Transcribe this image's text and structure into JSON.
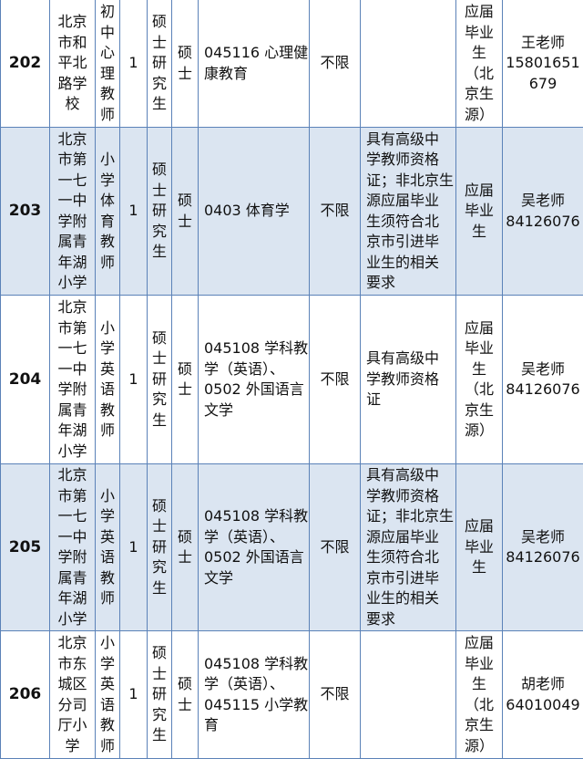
{
  "rows": [
    {
      "id": "202",
      "school": [
        "北京",
        "市和",
        "平北",
        "路学",
        "校"
      ],
      "position": [
        "初",
        "中",
        "心",
        "理",
        "教",
        "师"
      ],
      "count": "1",
      "education": [
        "硕",
        "士",
        "研",
        "究",
        "生"
      ],
      "degree": [
        "硕",
        "士"
      ],
      "major": [
        "045116 心理健",
        "康教育"
      ],
      "age": "不限",
      "requirements": [],
      "source": [
        "应届",
        "毕业",
        "生",
        "（北",
        "京生",
        "源）"
      ],
      "contact": [
        "王老师",
        "15801651",
        "679"
      ]
    },
    {
      "id": "203",
      "school": [
        "北京",
        "市第",
        "一七",
        "一中",
        "学附",
        "属青",
        "年湖",
        "小学"
      ],
      "position": [
        "小",
        "学",
        "体",
        "育",
        "教",
        "师"
      ],
      "count": "1",
      "education": [
        "硕",
        "士",
        "研",
        "究",
        "生"
      ],
      "degree": [
        "硕",
        "士"
      ],
      "major": [
        "0403 体育学"
      ],
      "age": "不限",
      "requirements": [
        "具有高级中",
        "学教师资格",
        "证；非北京生",
        "源应届毕业",
        "生须符合北",
        "京市引进毕",
        "业生的相关",
        "要求"
      ],
      "source": [
        "应届",
        "毕业",
        "生"
      ],
      "contact": [
        "吴老师",
        "84126076"
      ]
    },
    {
      "id": "204",
      "school": [
        "北京",
        "市第",
        "一七",
        "一中",
        "学附",
        "属青",
        "年湖",
        "小学"
      ],
      "position": [
        "小",
        "学",
        "英",
        "语",
        "教",
        "师"
      ],
      "count": "1",
      "education": [
        "硕",
        "士",
        "研",
        "究",
        "生"
      ],
      "degree": [
        "硕",
        "士"
      ],
      "major": [
        "045108 学科教",
        "学（英语）、",
        "0502 外国语言",
        "文学"
      ],
      "age": "不限",
      "requirements": [
        "具有高级中",
        "学教师资格",
        "证"
      ],
      "source": [
        "应届",
        "毕业",
        "生",
        "（北",
        "京生",
        "源）"
      ],
      "contact": [
        "吴老师",
        "84126076"
      ]
    },
    {
      "id": "205",
      "school": [
        "北京",
        "市第",
        "一七",
        "一中",
        "学附",
        "属青",
        "年湖",
        "小学"
      ],
      "position": [
        "小",
        "学",
        "英",
        "语",
        "教",
        "师"
      ],
      "count": "1",
      "education": [
        "硕",
        "士",
        "研",
        "究",
        "生"
      ],
      "degree": [
        "硕",
        "士"
      ],
      "major": [
        "045108 学科教",
        "学（英语）、",
        "0502 外国语言",
        "文学"
      ],
      "age": "不限",
      "requirements": [
        "具有高级中",
        "学教师资格",
        "证；非北京生",
        "源应届毕业",
        "生须符合北",
        "京市引进毕",
        "业生的相关",
        "要求"
      ],
      "source": [
        "应届",
        "毕业",
        "生"
      ],
      "contact": [
        "吴老师",
        "84126076"
      ]
    },
    {
      "id": "206",
      "school": [
        "北京",
        "市东",
        "城区",
        "分司",
        "厅小",
        "学"
      ],
      "position": [
        "小",
        "学",
        "英",
        "语",
        "教",
        "师"
      ],
      "count": "1",
      "education": [
        "硕",
        "士",
        "研",
        "究",
        "生"
      ],
      "degree": [
        "硕",
        "士"
      ],
      "major": [
        "045108 学科教",
        "学（英语）、",
        "045115 小学教",
        "育"
      ],
      "age": "不限",
      "requirements": [],
      "source": [
        "应届",
        "毕业",
        "生",
        "（北",
        "京生",
        "源）"
      ],
      "contact": [
        "胡老师",
        "64010049"
      ]
    }
  ],
  "colors": {
    "border": "#5b82b8",
    "shaded_row": "#dbe5f1"
  }
}
